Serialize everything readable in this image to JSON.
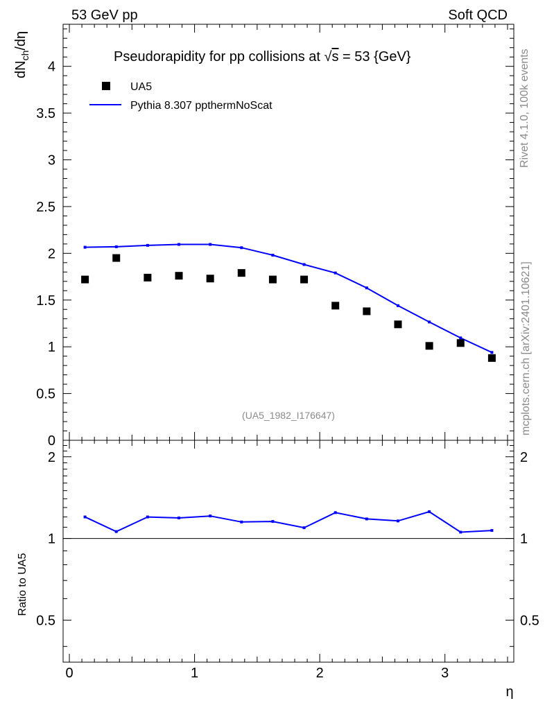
{
  "header": {
    "left": "53 GeV pp",
    "right": "Soft QCD"
  },
  "side_labels": {
    "rivet": "Rivet 4.1.0,  100k events",
    "mcplots": "mcplots.cern.ch [arXiv:2401.10621]"
  },
  "chart_data": {
    "type": "scatter",
    "title_prefix": "Pseudorapidity for pp collisions at ",
    "title_sqrt": "√",
    "title_s": "s",
    "title_suffix": " = 53 {GeV}",
    "analysis_tag": "(UA5_1982_I176647)",
    "xlabel": "η",
    "ylabel": {
      "main": "dN",
      "sub": "ch",
      "tail": "/dη"
    },
    "ratio_ylabel": "Ratio to UA5",
    "xlim": [
      -0.05,
      3.55
    ],
    "ylim": [
      0,
      4.45
    ],
    "ratio_ylim": [
      0.35,
      2.3
    ],
    "x_ticks": [
      "0",
      "1",
      "2",
      "3"
    ],
    "y_ticks": [
      "0",
      "0.5",
      "1",
      "1.5",
      "2",
      "2.5",
      "3",
      "3.5",
      "4"
    ],
    "ratio_ticks": [
      "0.5",
      "1",
      "2"
    ],
    "legend_position": "top-left",
    "series": [
      {
        "name": "UA5",
        "kind": "markers",
        "color": "#000000",
        "x": [
          0.125,
          0.375,
          0.625,
          0.875,
          1.125,
          1.375,
          1.625,
          1.875,
          2.125,
          2.375,
          2.625,
          2.875,
          3.125,
          3.375
        ],
        "y": [
          1.72,
          1.95,
          1.74,
          1.76,
          1.73,
          1.79,
          1.72,
          1.72,
          1.44,
          1.38,
          1.24,
          1.01,
          1.04,
          0.88
        ]
      },
      {
        "name": "Pythia 8.307 ppthermNoScat",
        "kind": "line",
        "color": "#0000ff",
        "x": [
          0.125,
          0.375,
          0.625,
          0.875,
          1.125,
          1.375,
          1.625,
          1.875,
          2.125,
          2.375,
          2.625,
          2.875,
          3.125,
          3.375
        ],
        "y": [
          2.065,
          2.07,
          2.085,
          2.095,
          2.095,
          2.06,
          1.98,
          1.88,
          1.79,
          1.63,
          1.44,
          1.265,
          1.095,
          0.94
        ]
      }
    ],
    "ratio": {
      "x": [
        0.125,
        0.375,
        0.625,
        0.875,
        1.125,
        1.375,
        1.625,
        1.875,
        2.125,
        2.375,
        2.625,
        2.875,
        3.125,
        3.375
      ],
      "y": [
        1.2,
        1.06,
        1.2,
        1.19,
        1.21,
        1.15,
        1.155,
        1.095,
        1.245,
        1.18,
        1.16,
        1.255,
        1.055,
        1.07
      ]
    }
  }
}
